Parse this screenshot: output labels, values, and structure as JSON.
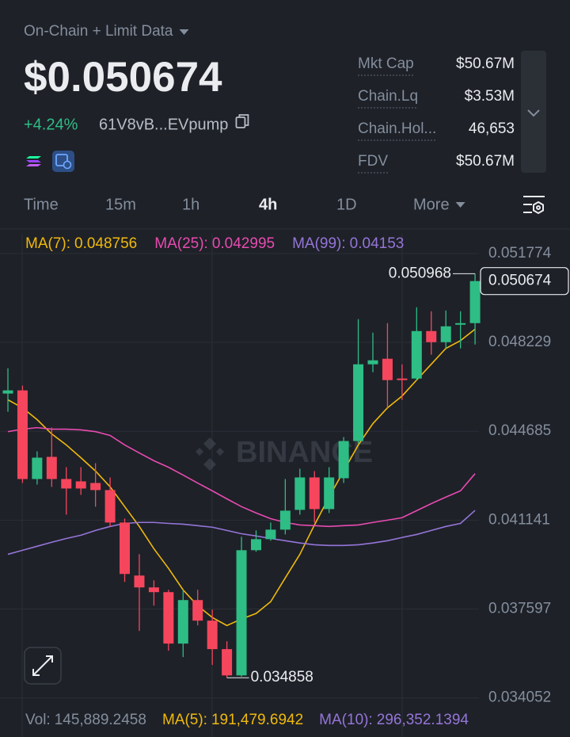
{
  "header": {
    "source_label": "On-Chain + Limit Data",
    "price": "$0.050674",
    "change": "+4.24%",
    "address": "61V8vB...EVpump"
  },
  "stats": [
    {
      "label": "Mkt Cap",
      "value": "$50.67M"
    },
    {
      "label": "Chain.Lq",
      "value": "$3.53M"
    },
    {
      "label": "Chain.Hol...",
      "value": "46,653"
    },
    {
      "label": "FDV",
      "value": "$50.67M"
    }
  ],
  "tabs": [
    "Time",
    "15m",
    "1h",
    "4h",
    "1D",
    "More"
  ],
  "active_tab": 3,
  "chart": {
    "type": "candlestick",
    "watermark": "BINANCE",
    "up_color": "#2ebd85",
    "down_color": "#f6465d",
    "ylim": [
      0.0336,
      0.05256
    ],
    "yticks": [
      0.051774,
      0.048229,
      0.044685,
      0.041141,
      0.037597,
      0.034052
    ],
    "grid": true,
    "open": [
      0.046189,
      0.046315,
      0.042781,
      0.043665,
      0.042781,
      0.042687,
      0.042623,
      0.04234,
      0.041046,
      0.038932,
      0.038459,
      0.03827,
      0.036219,
      0.037954,
      0.037134,
      0.035998,
      0.03495,
      0.039942,
      0.040383,
      0.040762,
      0.041551,
      0.042844,
      0.041582,
      0.042813,
      0.044296,
      0.047356,
      0.047577,
      0.046788,
      0.046788,
      0.048681,
      0.048239,
      0.048933,
      0.048997
    ],
    "high": [
      0.047198,
      0.046504,
      0.043885,
      0.044832,
      0.043254,
      0.043254,
      0.043412,
      0.042844,
      0.041204,
      0.039784,
      0.038743,
      0.038364,
      0.038364,
      0.038364,
      0.037575,
      0.036313,
      0.040478,
      0.04073,
      0.041046,
      0.042781,
      0.043191,
      0.043097,
      0.043254,
      0.044453,
      0.049154,
      0.048618,
      0.048997,
      0.047356,
      0.049628,
      0.04947,
      0.049501,
      0.04947,
      0.050968
    ],
    "low": [
      0.045463,
      0.042623,
      0.04256,
      0.042466,
      0.041361,
      0.04215,
      0.041677,
      0.040888,
      0.03868,
      0.036724,
      0.037733,
      0.035935,
      0.035682,
      0.036944,
      0.035367,
      0.034858,
      0.0349,
      0.039879,
      0.04032,
      0.040573,
      0.041361,
      0.041046,
      0.041425,
      0.042623,
      0.044201,
      0.04704,
      0.045621,
      0.045936,
      0.046725,
      0.047735,
      0.047987,
      0.047987,
      0.048145
    ],
    "close": [
      0.046315,
      0.042781,
      0.043633,
      0.042781,
      0.042403,
      0.042403,
      0.04234,
      0.041046,
      0.038995,
      0.038459,
      0.03827,
      0.036219,
      0.037954,
      0.037134,
      0.035998,
      0.03495,
      0.039942,
      0.040383,
      0.040762,
      0.041519,
      0.042844,
      0.041582,
      0.042844,
      0.044296,
      0.047356,
      0.047514,
      0.046725,
      0.046725,
      0.048681,
      0.048239,
      0.04887,
      0.048997,
      0.050674
    ],
    "ma": [
      {
        "name": "MA(7):",
        "color": "#f0b90b",
        "values": [
          0.04594,
          0.04562,
          0.04515,
          0.04458,
          0.04414,
          0.04363,
          0.0431,
          0.04247,
          0.04168,
          0.04089,
          0.04,
          0.03922,
          0.03836,
          0.03773,
          0.03726,
          0.03694,
          0.0372,
          0.03742,
          0.03789,
          0.03884,
          0.03978,
          0.04095,
          0.04206,
          0.0431,
          0.04414,
          0.04499,
          0.04562,
          0.04609,
          0.04673,
          0.04736,
          0.04799,
          0.0483,
          0.048756
        ]
      },
      {
        "name": "MA(25):",
        "color": "#e84bb0",
        "values": [
          0.04467,
          0.04477,
          0.04483,
          0.04477,
          0.04477,
          0.04474,
          0.04467,
          0.04452,
          0.04414,
          0.04382,
          0.04351,
          0.04325,
          0.04294,
          0.04262,
          0.04231,
          0.04199,
          0.04168,
          0.04143,
          0.0412,
          0.04105,
          0.04095,
          0.04092,
          0.04089,
          0.04092,
          0.04095,
          0.04105,
          0.04114,
          0.04124,
          0.04152,
          0.0418,
          0.04206,
          0.04231,
          0.042995
        ]
      },
      {
        "name": "MA(99):",
        "color": "#9575d8",
        "values": [
          0.03978,
          0.03994,
          0.0401,
          0.04026,
          0.04041,
          0.04054,
          0.04073,
          0.04089,
          0.04101,
          0.04105,
          0.04105,
          0.04101,
          0.04098,
          0.04092,
          0.04086,
          0.04073,
          0.0406,
          0.04051,
          0.04041,
          0.04032,
          0.04023,
          0.04016,
          0.04013,
          0.04013,
          0.04016,
          0.04023,
          0.04032,
          0.04045,
          0.04057,
          0.04073,
          0.04089,
          0.04101,
          0.04153
        ]
      }
    ]
  },
  "volume_legend": [
    {
      "label": "Vol:",
      "value": "145,889.2458",
      "color": "#848e9c"
    },
    {
      "label": "MA(5):",
      "value": "191,479.6942",
      "color": "#f0b90b"
    },
    {
      "label": "MA(10):",
      "value": "296,352.1394",
      "color": "#9575d8"
    }
  ]
}
